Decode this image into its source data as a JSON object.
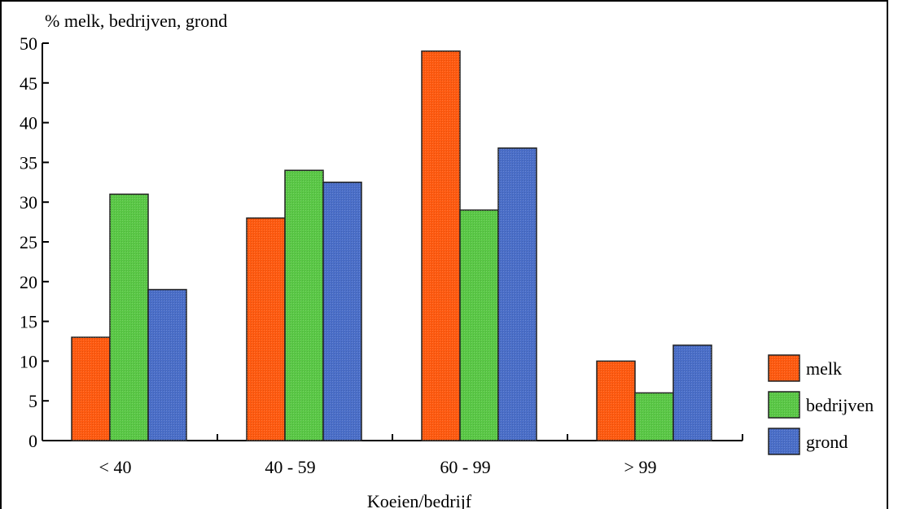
{
  "chart_data": {
    "type": "bar",
    "title": "",
    "ylabel": "% melk, bedrijven, grond",
    "xlabel": "Koeien/bedrijf",
    "categories": [
      "< 40",
      "40 - 59",
      "60 - 99",
      "> 99"
    ],
    "ylim": [
      0,
      50
    ],
    "yticks": [
      "0",
      "5",
      "10",
      "15",
      "20",
      "25",
      "30",
      "35",
      "40",
      "45",
      "50"
    ],
    "legend_position": "right-bottom",
    "grid": false,
    "series": [
      {
        "name": "melk",
        "color": "#ff5a10",
        "values": [
          13,
          28,
          49,
          10
        ]
      },
      {
        "name": "bedrijven",
        "color": "#5ac846",
        "values": [
          31,
          34,
          29,
          6
        ]
      },
      {
        "name": "grond",
        "color": "#4a6ec8",
        "values": [
          19,
          32.5,
          36.8,
          12
        ]
      }
    ]
  }
}
